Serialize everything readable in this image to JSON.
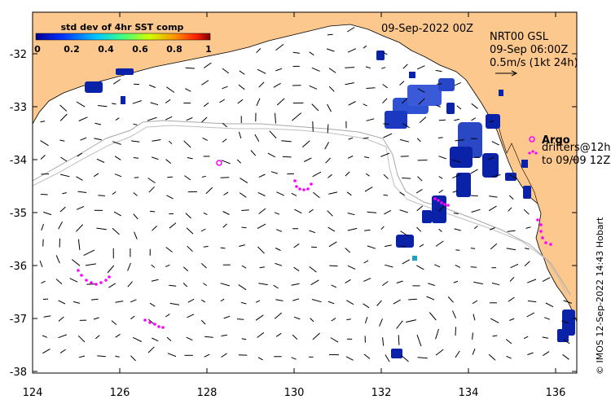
{
  "title": "09-Sep-2022 00Z",
  "product": {
    "line1": "NRT00 GSL",
    "line2": "09-Sep 06:00Z",
    "line3": "0.5m/s (1kt 24h)"
  },
  "colorbar": {
    "title": "std dev of 4hr SST comp",
    "ticks": [
      "0",
      "0.2",
      "0.4",
      "0.6",
      "0.8",
      "1"
    ],
    "range": [
      0,
      1
    ]
  },
  "legend": {
    "argo_label": "Argo",
    "drifters_line1": "drifters@12h",
    "drifters_line2": "to 09/09 12Z"
  },
  "credit": "© IMOS 12-Sep-2022 14:43 Hobart",
  "axes": {
    "x_ticks": [
      "124",
      "126",
      "128",
      "130",
      "132",
      "134",
      "136"
    ],
    "y_ticks": [
      "-32",
      "-33",
      "-34",
      "-35",
      "-36",
      "-37",
      "-38"
    ],
    "lon_range": [
      124,
      136.5
    ],
    "lat_range": [
      -38.1,
      -31.4
    ]
  },
  "colors": {
    "land": "#fcc88d",
    "argo": "#ff00ff",
    "drifter": "#ff00ff",
    "sst_dark": "#0a1aa0",
    "sst_mid": "#2a4ad0",
    "isobath": "#a0a0a0"
  }
}
